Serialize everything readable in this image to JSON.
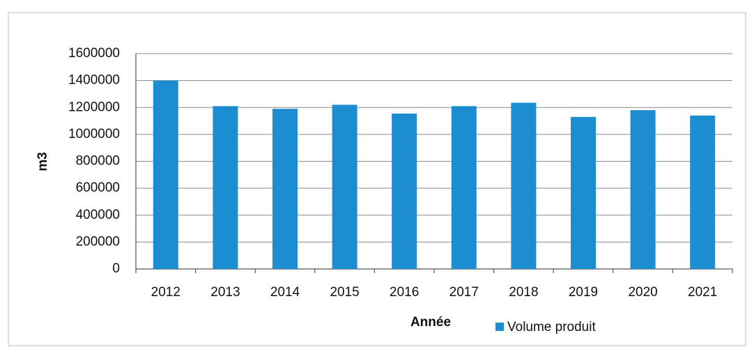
{
  "chart_data": {
    "type": "bar",
    "categories": [
      "2012",
      "2013",
      "2014",
      "2015",
      "2016",
      "2017",
      "2018",
      "2019",
      "2020",
      "2021"
    ],
    "series": [
      {
        "name": "Volume produit",
        "color": "#1b8dd0",
        "values": [
          1400000,
          1210000,
          1190000,
          1220000,
          1155000,
          1210000,
          1235000,
          1130000,
          1180000,
          1140000
        ]
      }
    ],
    "ylim": [
      0,
      1600000
    ],
    "yticks": [
      0,
      200000,
      400000,
      600000,
      800000,
      1000000,
      1200000,
      1400000,
      1600000
    ],
    "y_label": "m3",
    "x_label": "Année",
    "grid": true,
    "legend": "bottom"
  }
}
